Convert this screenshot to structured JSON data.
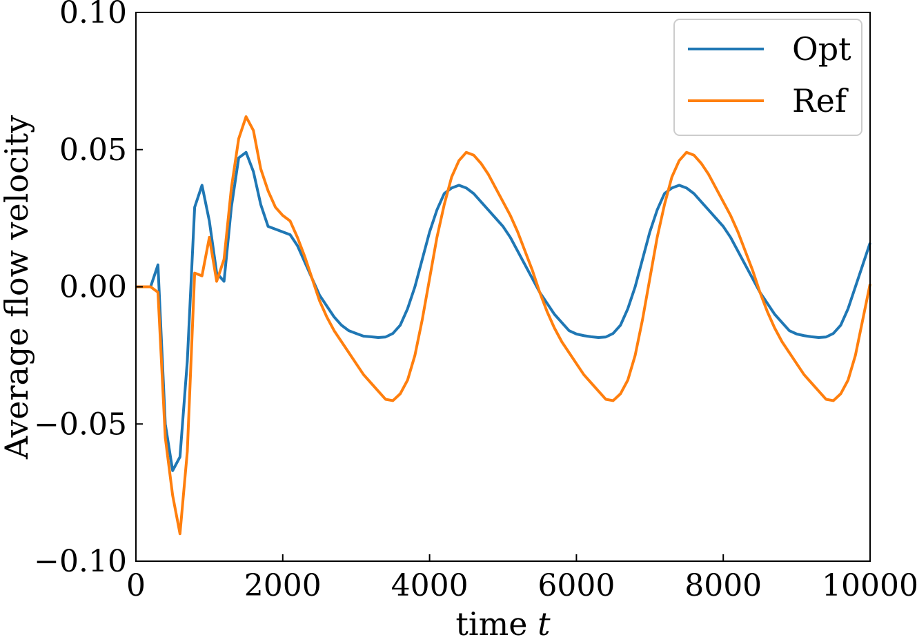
{
  "chart_data": {
    "type": "line",
    "xlabel": "time",
    "xlabel_var": "t",
    "ylabel": "Average flow velocity",
    "xlim": [
      0,
      10000
    ],
    "ylim": [
      -0.1,
      0.1
    ],
    "xticks": [
      0,
      2000,
      4000,
      6000,
      8000,
      10000
    ],
    "xtick_labels": [
      "0",
      "2000",
      "4000",
      "6000",
      "8000",
      "10000"
    ],
    "yticks": [
      -0.1,
      -0.05,
      0.0,
      0.05,
      0.1
    ],
    "ytick_labels": [
      "−0.10",
      "−0.05",
      "0.00",
      "0.05",
      "0.10"
    ],
    "grid": false,
    "legend_position": "top-right",
    "x": [
      0,
      100,
      200,
      300,
      400,
      500,
      600,
      700,
      800,
      900,
      1000,
      1100,
      1200,
      1300,
      1400,
      1500,
      1600,
      1700,
      1800,
      1900,
      2000,
      2100,
      2200,
      2300,
      2400,
      2500,
      2600,
      2700,
      2800,
      2900,
      3000,
      3100,
      3200,
      3300,
      3400,
      3500,
      3600,
      3700,
      3800,
      3900,
      4000,
      4100,
      4200,
      4300,
      4400,
      4500,
      4600,
      4700,
      4800,
      4900,
      5000,
      5100,
      5200,
      5300,
      5400,
      5500,
      5600,
      5700,
      5800,
      5900,
      6000,
      6100,
      6200,
      6300,
      6400,
      6500,
      6600,
      6700,
      6800,
      6900,
      7000,
      7100,
      7200,
      7300,
      7400,
      7500,
      7600,
      7700,
      7800,
      7900,
      8000,
      8100,
      8200,
      8300,
      8400,
      8500,
      8600,
      8700,
      8800,
      8900,
      9000,
      9100,
      9200,
      9300,
      9400,
      9500,
      9600,
      9700,
      9800,
      9900,
      10000
    ],
    "series": [
      {
        "name": "Opt",
        "color": "#1f77b4",
        "values": [
          0.0,
          0.0,
          0.0,
          0.008,
          -0.05,
          -0.067,
          -0.062,
          -0.027,
          0.029,
          0.037,
          0.024,
          0.005,
          0.002,
          0.029,
          0.047,
          0.049,
          0.042,
          0.03,
          0.022,
          0.021,
          0.02,
          0.019,
          0.015,
          0.009,
          0.003,
          -0.003,
          -0.007,
          -0.011,
          -0.014,
          -0.016,
          -0.017,
          -0.018,
          -0.0182,
          -0.0185,
          -0.0183,
          -0.017,
          -0.014,
          -0.008,
          0.0,
          0.01,
          0.02,
          0.028,
          0.034,
          0.036,
          0.037,
          0.036,
          0.034,
          0.031,
          0.028,
          0.025,
          0.022,
          0.018,
          0.013,
          0.008,
          0.003,
          -0.002,
          -0.006,
          -0.01,
          -0.013,
          -0.016,
          -0.0172,
          -0.0178,
          -0.0182,
          -0.0185,
          -0.0183,
          -0.017,
          -0.014,
          -0.008,
          0.0,
          0.01,
          0.02,
          0.028,
          0.034,
          0.036,
          0.037,
          0.036,
          0.034,
          0.031,
          0.028,
          0.025,
          0.022,
          0.018,
          0.013,
          0.008,
          0.003,
          -0.002,
          -0.006,
          -0.01,
          -0.013,
          -0.016,
          -0.0172,
          -0.0178,
          -0.0182,
          -0.0185,
          -0.0183,
          -0.017,
          -0.014,
          -0.008,
          0.0,
          0.008,
          0.016
        ]
      },
      {
        "name": "Ref",
        "color": "#ff7f0e",
        "values": [
          0.0,
          0.0,
          0.0,
          -0.002,
          -0.055,
          -0.076,
          -0.09,
          -0.06,
          0.005,
          0.004,
          0.018,
          0.002,
          0.01,
          0.036,
          0.054,
          0.062,
          0.057,
          0.043,
          0.035,
          0.029,
          0.026,
          0.024,
          0.018,
          0.011,
          0.003,
          -0.005,
          -0.011,
          -0.016,
          -0.02,
          -0.024,
          -0.028,
          -0.032,
          -0.035,
          -0.038,
          -0.041,
          -0.0415,
          -0.039,
          -0.034,
          -0.025,
          -0.012,
          0.003,
          0.018,
          0.03,
          0.04,
          0.046,
          0.049,
          0.048,
          0.045,
          0.041,
          0.036,
          0.031,
          0.026,
          0.02,
          0.013,
          0.006,
          -0.002,
          -0.009,
          -0.015,
          -0.02,
          -0.024,
          -0.028,
          -0.032,
          -0.035,
          -0.038,
          -0.041,
          -0.0415,
          -0.039,
          -0.034,
          -0.025,
          -0.012,
          0.003,
          0.018,
          0.03,
          0.04,
          0.046,
          0.049,
          0.048,
          0.045,
          0.041,
          0.036,
          0.031,
          0.026,
          0.02,
          0.013,
          0.006,
          -0.002,
          -0.009,
          -0.015,
          -0.02,
          -0.024,
          -0.028,
          -0.032,
          -0.035,
          -0.038,
          -0.041,
          -0.0415,
          -0.039,
          -0.034,
          -0.025,
          -0.012,
          0.001
        ]
      }
    ]
  }
}
